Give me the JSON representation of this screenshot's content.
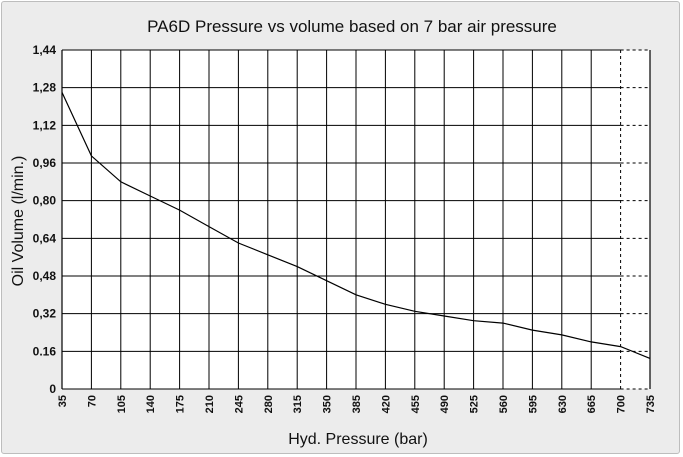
{
  "chart_data": {
    "type": "line",
    "title": "PA6D Pressure vs volume based on 7 bar air pressure",
    "xlabel": "Hyd. Pressure (bar)",
    "ylabel": "Oil Volume (l/min.)",
    "x_ticks": [
      "35",
      "70",
      "105",
      "140",
      "175",
      "210",
      "245",
      "280",
      "315",
      "350",
      "385",
      "420",
      "455",
      "490",
      "525",
      "560",
      "595",
      "630",
      "665",
      "700",
      "735"
    ],
    "y_ticks": [
      "0",
      "0.16",
      "0,32",
      "0,48",
      "0,64",
      "0,80",
      "0,96",
      "1,12",
      "1,28",
      "1,44"
    ],
    "xlim": [
      35,
      735
    ],
    "ylim": [
      0,
      1.44
    ],
    "grid": true,
    "series": [
      {
        "x": [
          35,
          70,
          105,
          140,
          175,
          210,
          245,
          280,
          315,
          350,
          385,
          420,
          455,
          490,
          525,
          560,
          595,
          630,
          665,
          700,
          735
        ],
        "y": [
          1.26,
          0.99,
          0.88,
          0.82,
          0.76,
          0.69,
          0.62,
          0.57,
          0.52,
          0.46,
          0.4,
          0.36,
          0.33,
          0.31,
          0.29,
          0.28,
          0.25,
          0.23,
          0.2,
          0.18,
          0.13
        ]
      }
    ]
  }
}
